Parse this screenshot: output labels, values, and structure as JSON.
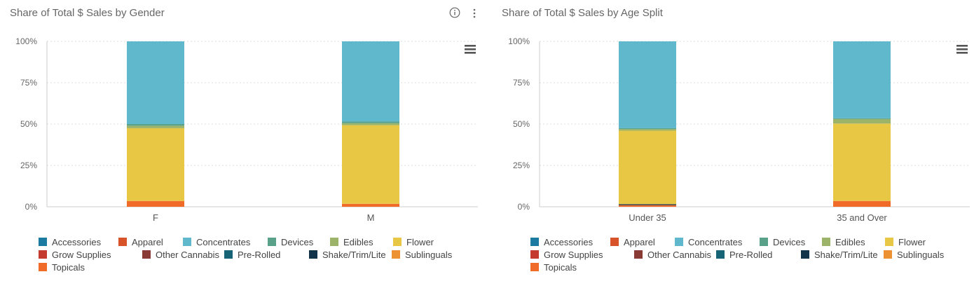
{
  "colors": {
    "Accessories": "#1a7aa0",
    "Apparel": "#d9532a",
    "Concentrates": "#60b8cc",
    "Devices": "#5aa18a",
    "Edibles": "#9bb46a",
    "Flower": "#e8c744",
    "Grow Supplies": "#c43a2e",
    "Other Cannabis": "#8a3a35",
    "Pre-Rolled": "#176477",
    "Shake/Trim/Lite": "#12344a",
    "Sublinguals": "#ec9232",
    "Topicals": "#f06a2a"
  },
  "legend_rows": [
    [
      "Accessories",
      "Apparel",
      "Concentrates",
      "Devices",
      "Edibles",
      "Flower"
    ],
    [
      "Grow Supplies",
      "Other Cannabis",
      "Pre-Rolled",
      "Shake/Trim/Lite",
      "Sublinguals"
    ],
    [
      "Topicals"
    ]
  ],
  "chart_data": [
    {
      "type": "bar",
      "stacked": true,
      "title": "Share of Total $ Sales by Gender",
      "categories": [
        "F",
        "M"
      ],
      "ylim": [
        0,
        100
      ],
      "yticks": [
        "0%",
        "25%",
        "50%",
        "75%",
        "100%"
      ],
      "grid": true,
      "legend": "bottom",
      "series": [
        {
          "name": "Accessories",
          "values": [
            0,
            0
          ]
        },
        {
          "name": "Apparel",
          "values": [
            0,
            0
          ]
        },
        {
          "name": "Grow Supplies",
          "values": [
            0,
            0
          ]
        },
        {
          "name": "Other Cannabis",
          "values": [
            0,
            0
          ]
        },
        {
          "name": "Pre-Rolled",
          "values": [
            0,
            0
          ]
        },
        {
          "name": "Shake/Trim/Lite",
          "values": [
            0,
            0
          ]
        },
        {
          "name": "Topicals",
          "values": [
            3.5,
            1.8
          ]
        },
        {
          "name": "Sublinguals",
          "values": [
            0,
            0
          ]
        },
        {
          "name": "Flower",
          "values": [
            44,
            47.5
          ]
        },
        {
          "name": "Edibles",
          "values": [
            1.5,
            1.2
          ]
        },
        {
          "name": "Devices",
          "values": [
            1,
            1
          ]
        },
        {
          "name": "Concentrates",
          "values": [
            50,
            48.5
          ]
        }
      ]
    },
    {
      "type": "bar",
      "stacked": true,
      "title": "Share of Total $ Sales by Age Split",
      "categories": [
        "Under 35",
        "35 and Over"
      ],
      "ylim": [
        0,
        100
      ],
      "yticks": [
        "0%",
        "25%",
        "50%",
        "75%",
        "100%"
      ],
      "grid": true,
      "legend": "bottom",
      "series": [
        {
          "name": "Accessories",
          "values": [
            0,
            0
          ]
        },
        {
          "name": "Apparel",
          "values": [
            0,
            0
          ]
        },
        {
          "name": "Grow Supplies",
          "values": [
            0,
            0
          ]
        },
        {
          "name": "Other Cannabis",
          "values": [
            0,
            0
          ]
        },
        {
          "name": "Pre-Rolled",
          "values": [
            0,
            0
          ]
        },
        {
          "name": "Topicals",
          "values": [
            1,
            3.5
          ]
        },
        {
          "name": "Shake/Trim/Lite",
          "values": [
            0.6,
            0
          ]
        },
        {
          "name": "Sublinguals",
          "values": [
            0,
            0
          ]
        },
        {
          "name": "Flower",
          "values": [
            44.4,
            46.8
          ]
        },
        {
          "name": "Edibles",
          "values": [
            1,
            2.7
          ]
        },
        {
          "name": "Devices",
          "values": [
            0.5,
            0.5
          ]
        },
        {
          "name": "Concentrates",
          "values": [
            52.5,
            46.5
          ]
        }
      ]
    }
  ]
}
